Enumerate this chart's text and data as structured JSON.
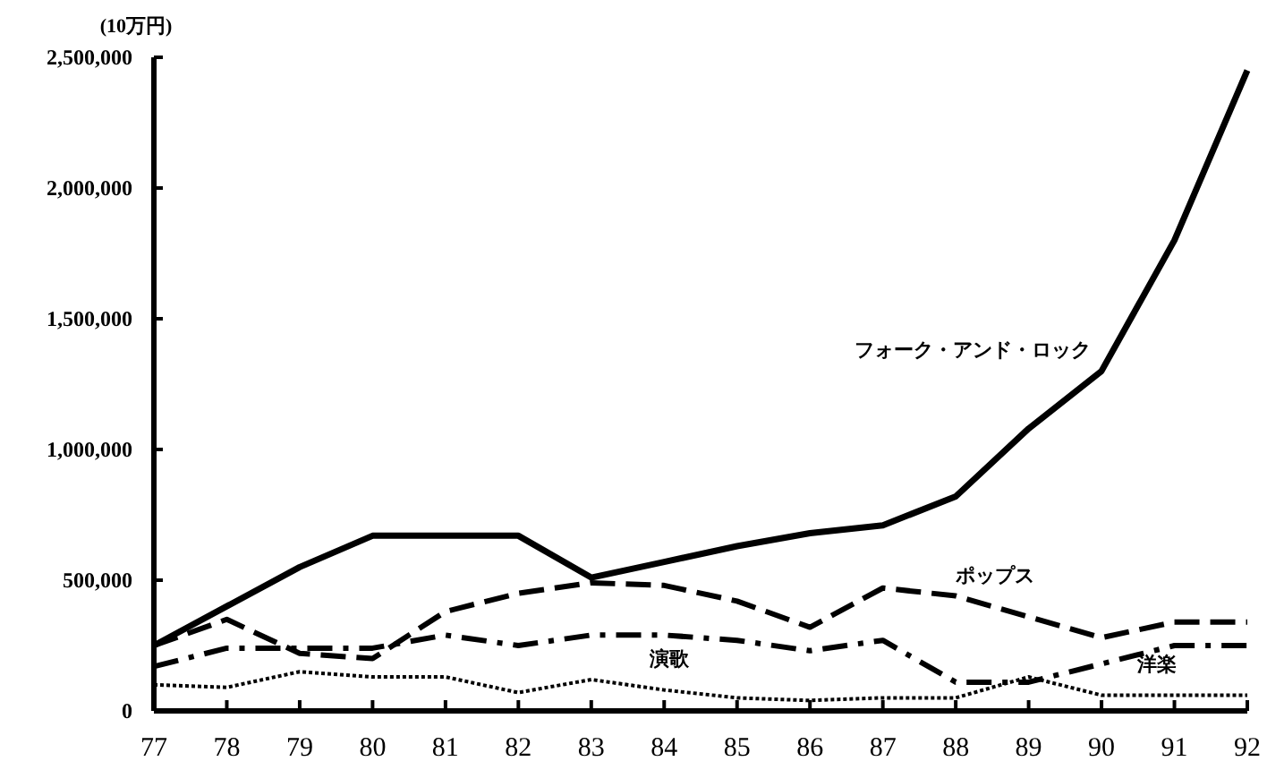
{
  "chart_data": {
    "type": "line",
    "ylabel": "(10万円)",
    "categories": [
      "77",
      "78",
      "79",
      "80",
      "81",
      "82",
      "83",
      "84",
      "85",
      "86",
      "87",
      "88",
      "89",
      "90",
      "91",
      "92"
    ],
    "ylim": [
      0,
      2500000
    ],
    "yticks": [
      {
        "value": 0,
        "label": "0"
      },
      {
        "value": 500000,
        "label": "500,000"
      },
      {
        "value": 1000000,
        "label": "1,000,000"
      },
      {
        "value": 1500000,
        "label": "1,500,000"
      },
      {
        "value": 2000000,
        "label": "2,000,000"
      },
      {
        "value": 2500000,
        "label": "2,500,000"
      }
    ],
    "grid": false,
    "marker": "none",
    "series": [
      {
        "name": "フォーク・アンド・ロック",
        "color": "#000000",
        "line_style": "solid",
        "values": [
          250000,
          400000,
          550000,
          670000,
          670000,
          670000,
          510000,
          570000,
          630000,
          680000,
          710000,
          820000,
          1080000,
          1300000,
          1800000,
          2450000
        ]
      },
      {
        "name": "ポップス",
        "color": "#000000",
        "line_style": "dashed",
        "values": [
          250000,
          350000,
          220000,
          200000,
          380000,
          450000,
          490000,
          480000,
          420000,
          320000,
          470000,
          440000,
          360000,
          280000,
          340000,
          340000
        ]
      },
      {
        "name": "洋楽",
        "color": "#000000",
        "line_style": "dashed",
        "values": [
          170000,
          240000,
          240000,
          240000,
          290000,
          250000,
          290000,
          290000,
          270000,
          230000,
          270000,
          110000,
          110000,
          180000,
          250000,
          250000
        ]
      },
      {
        "name": "演歌",
        "color": "#000000",
        "line_style": "dotted",
        "values": [
          100000,
          90000,
          150000,
          130000,
          130000,
          70000,
          120000,
          80000,
          50000,
          40000,
          50000,
          50000,
          130000,
          60000,
          60000,
          60000
        ]
      }
    ]
  }
}
